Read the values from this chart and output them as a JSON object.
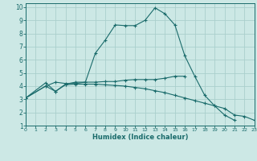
{
  "xlabel": "Humidex (Indice chaleur)",
  "bg_color": "#cce8e5",
  "grid_color": "#aacfcc",
  "line_color": "#1a6b6b",
  "xlim": [
    0,
    23
  ],
  "ylim": [
    1,
    10.3
  ],
  "xticks": [
    0,
    1,
    2,
    3,
    4,
    5,
    6,
    7,
    8,
    9,
    10,
    11,
    12,
    13,
    14,
    15,
    16,
    17,
    18,
    19,
    20,
    21,
    22,
    23
  ],
  "yticks": [
    1,
    2,
    3,
    4,
    5,
    6,
    7,
    8,
    9,
    10
  ],
  "lines": [
    {
      "x": [
        0,
        2,
        3,
        4,
        5,
        6,
        7,
        8,
        9,
        10,
        11,
        12,
        13,
        14,
        15,
        16,
        17,
        18,
        19,
        20,
        21
      ],
      "y": [
        3.1,
        4.0,
        4.3,
        4.2,
        4.2,
        4.3,
        6.5,
        7.5,
        8.65,
        8.6,
        8.6,
        9.0,
        9.95,
        9.5,
        8.65,
        6.3,
        4.75,
        3.3,
        2.5,
        1.8,
        1.4
      ]
    },
    {
      "x": [
        0,
        2,
        3,
        4,
        5,
        6,
        7,
        8,
        9,
        10,
        11,
        12,
        13,
        14,
        15,
        16
      ],
      "y": [
        3.1,
        4.25,
        3.6,
        4.15,
        4.3,
        4.3,
        4.3,
        4.35,
        4.35,
        4.45,
        4.5,
        4.5,
        4.5,
        4.6,
        4.75,
        4.75
      ]
    },
    {
      "x": [
        0,
        2,
        3,
        4,
        5,
        6,
        7,
        8,
        9,
        10,
        11,
        12,
        13,
        14,
        15,
        16,
        17,
        18,
        19,
        20,
        21,
        22,
        23
      ],
      "y": [
        3.1,
        4.0,
        3.6,
        4.1,
        4.15,
        4.15,
        4.15,
        4.1,
        4.05,
        4.0,
        3.9,
        3.8,
        3.65,
        3.5,
        3.3,
        3.1,
        2.9,
        2.7,
        2.5,
        2.3,
        1.8,
        1.7,
        1.4
      ]
    }
  ]
}
